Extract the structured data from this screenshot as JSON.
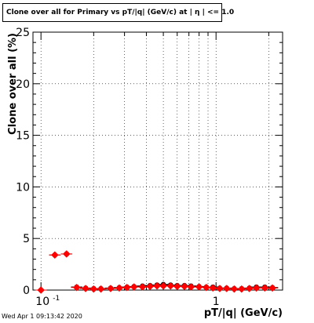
{
  "chart_data": {
    "type": "scatter",
    "title": "Clone  over all for Primary vs pT/|q| (GeV/c) at |  η | <= 1.0",
    "xlabel": "pT/|q| (GeV/c)",
    "ylabel": "Clone  over all (%)",
    "x_scale": "log",
    "xlim": [
      0.09,
      2.4
    ],
    "ylim": [
      0,
      25
    ],
    "grid": true,
    "y_ticks": [
      0,
      5,
      10,
      15,
      20,
      25
    ],
    "y_tick_labels": [
      "0",
      "5",
      "10",
      "15",
      "20",
      "25"
    ],
    "x_tick_labels": [
      {
        "value": 0.1,
        "base": "10",
        "exp": "-1"
      },
      {
        "value": 1,
        "text": "1"
      }
    ],
    "series": [
      {
        "color": "#000000",
        "marker": "circle",
        "x": [
          0.1,
          0.12,
          0.14,
          0.16,
          0.18,
          0.2,
          0.22,
          0.25,
          0.28,
          0.31,
          0.34,
          0.38,
          0.42,
          0.46,
          0.5,
          0.55,
          0.6,
          0.66,
          0.72,
          0.8,
          0.88,
          0.96,
          1.05,
          1.15,
          1.27,
          1.4,
          1.55,
          1.7,
          1.9,
          2.1
        ],
        "y": [
          0.0,
          3.4,
          3.5,
          0.3,
          0.2,
          0.15,
          0.15,
          0.2,
          0.25,
          0.3,
          0.35,
          0.4,
          0.45,
          0.5,
          0.55,
          0.5,
          0.45,
          0.45,
          0.4,
          0.35,
          0.3,
          0.3,
          0.2,
          0.2,
          0.15,
          0.15,
          0.2,
          0.3,
          0.3,
          0.25
        ]
      },
      {
        "color": "#ff0000",
        "marker": "diamond",
        "x": [
          0.1,
          0.12,
          0.14,
          0.16,
          0.18,
          0.2,
          0.22,
          0.25,
          0.28,
          0.31,
          0.34,
          0.38,
          0.42,
          0.46,
          0.5,
          0.55,
          0.6,
          0.66,
          0.72,
          0.8,
          0.88,
          0.96,
          1.05,
          1.15,
          1.27,
          1.4,
          1.55,
          1.7,
          1.9,
          2.1
        ],
        "y": [
          0.0,
          3.4,
          3.5,
          0.25,
          0.15,
          0.1,
          0.1,
          0.15,
          0.2,
          0.25,
          0.3,
          0.3,
          0.35,
          0.4,
          0.4,
          0.4,
          0.35,
          0.35,
          0.3,
          0.3,
          0.25,
          0.2,
          0.15,
          0.15,
          0.1,
          0.1,
          0.15,
          0.2,
          0.2,
          0.2
        ]
      }
    ]
  },
  "footer": {
    "timestamp": "Wed Apr  1 09:13:42 2020"
  }
}
